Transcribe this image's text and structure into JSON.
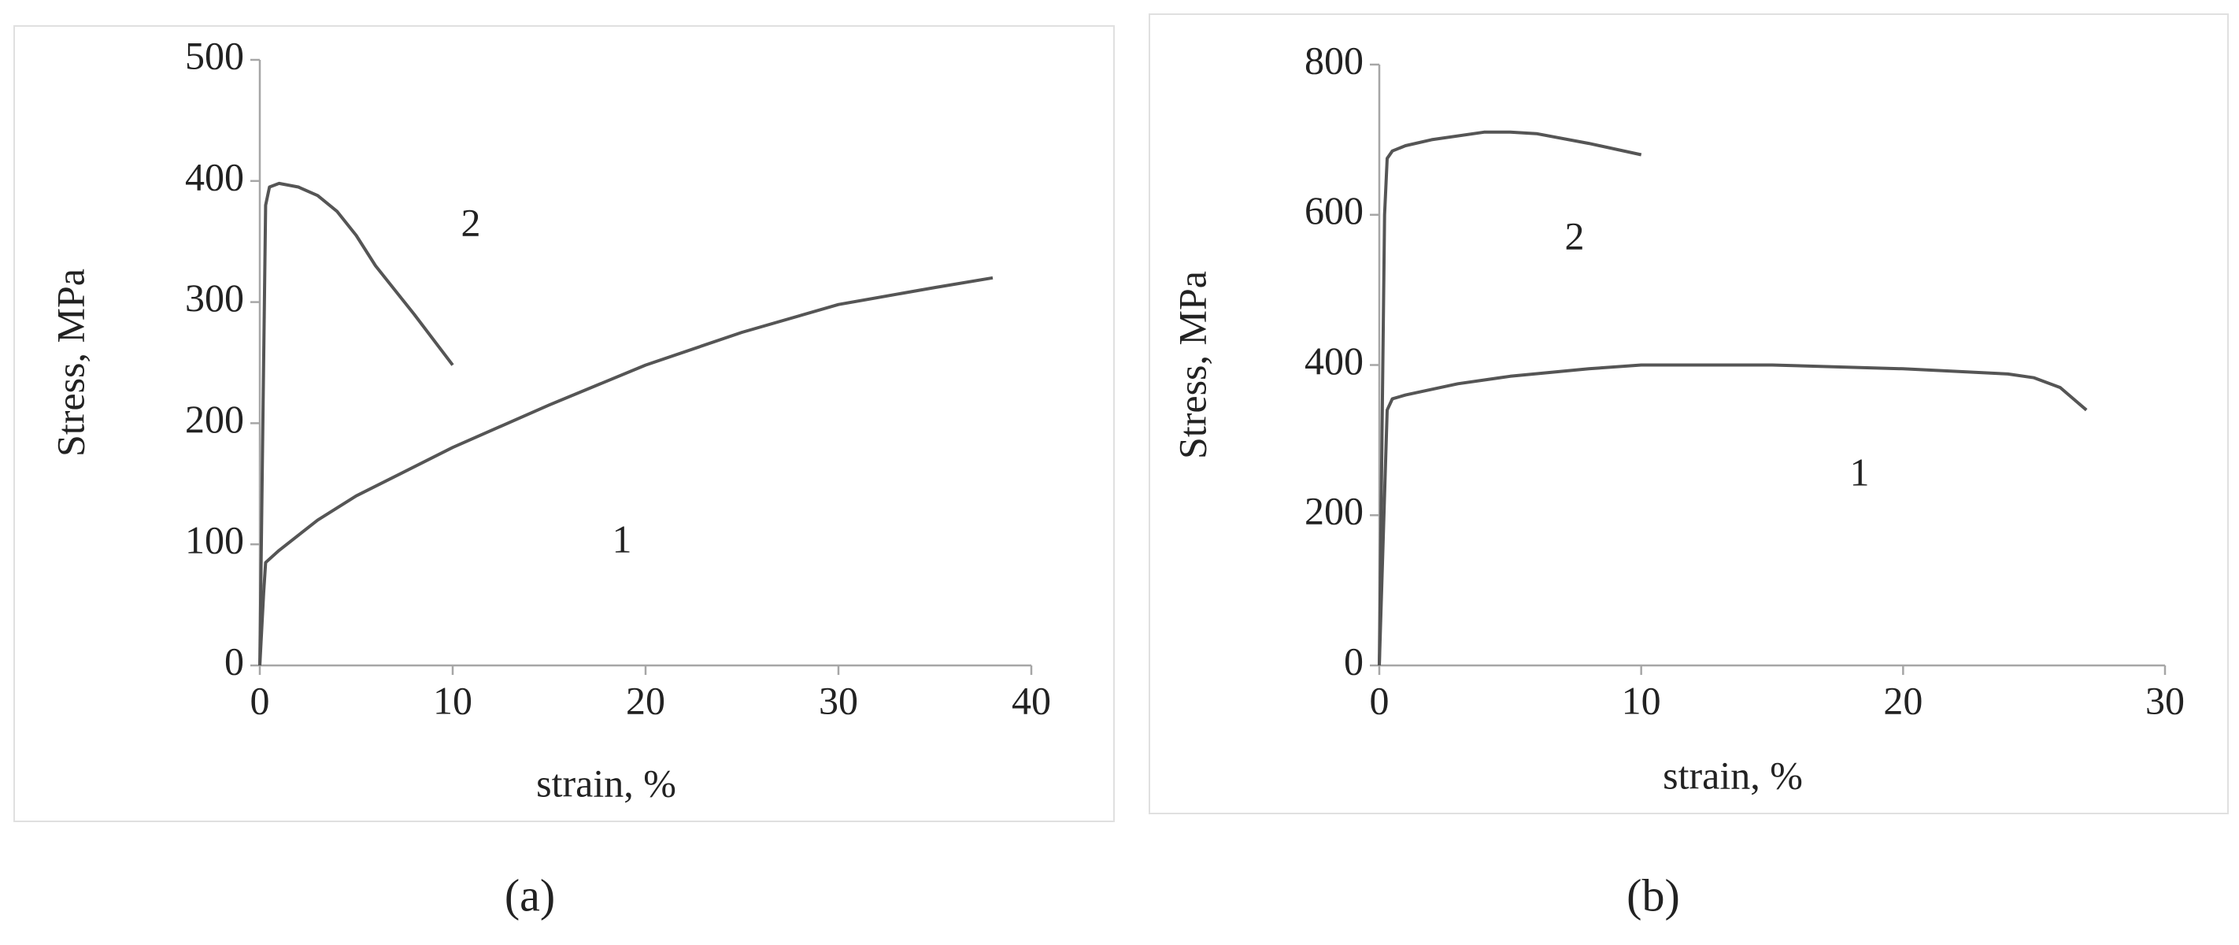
{
  "chart_data": [
    {
      "type": "line",
      "label": "(a)",
      "xlabel": "strain, %",
      "ylabel": "Stress, MPa",
      "xlim": [
        0,
        40
      ],
      "ylim": [
        0,
        500
      ],
      "xticks": [
        0,
        10,
        20,
        30,
        40
      ],
      "yticks": [
        0,
        100,
        200,
        300,
        400,
        500
      ],
      "series": [
        {
          "name": "1",
          "color": "#555555",
          "x": [
            0,
            0.2,
            0.3,
            1,
            3,
            5,
            10,
            15,
            20,
            25,
            30,
            35,
            38
          ],
          "values": [
            0,
            60,
            85,
            95,
            120,
            140,
            180,
            215,
            248,
            275,
            298,
            312,
            320
          ]
        },
        {
          "name": "2",
          "color": "#555555",
          "x": [
            0,
            0.3,
            0.5,
            1,
            2,
            3,
            4,
            5,
            6,
            8,
            10
          ],
          "values": [
            0,
            380,
            395,
            398,
            395,
            388,
            375,
            355,
            330,
            290,
            248
          ]
        }
      ]
    },
    {
      "type": "line",
      "label": "(b)",
      "xlabel": "strain, %",
      "ylabel": "Stress, MPa",
      "xlim": [
        0,
        30
      ],
      "ylim": [
        0,
        800
      ],
      "xticks": [
        0,
        10,
        20,
        30
      ],
      "yticks": [
        0,
        200,
        400,
        600,
        800
      ],
      "series": [
        {
          "name": "1",
          "color": "#555555",
          "x": [
            0,
            0.3,
            0.5,
            1,
            3,
            5,
            8,
            10,
            15,
            20,
            24,
            25,
            26,
            27
          ],
          "values": [
            0,
            340,
            355,
            360,
            375,
            385,
            395,
            400,
            400,
            395,
            388,
            383,
            370,
            340
          ]
        },
        {
          "name": "2",
          "color": "#555555",
          "x": [
            0,
            0.2,
            0.3,
            0.5,
            1,
            2,
            4,
            5,
            6,
            8,
            10
          ],
          "values": [
            0,
            600,
            675,
            685,
            692,
            700,
            710,
            710,
            708,
            695,
            680
          ]
        }
      ]
    }
  ]
}
